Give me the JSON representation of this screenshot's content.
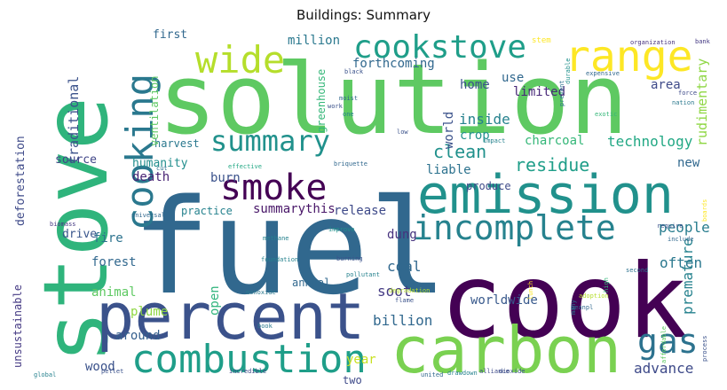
{
  "title": "Buildings: Summary",
  "palette": [
    "#440154",
    "#482878",
    "#3e4a89",
    "#31688e",
    "#26828e",
    "#1f9e89",
    "#35b779",
    "#6ece58",
    "#b5de2b",
    "#fde725"
  ],
  "words": [
    {
      "text": "solution",
      "color": "#5ec962"
    },
    {
      "text": "fuel",
      "color": "#31688e"
    },
    {
      "text": "cook",
      "color": "#440154"
    },
    {
      "text": "stove",
      "color": "#2fb47c"
    },
    {
      "text": "emission",
      "color": "#21918c"
    },
    {
      "text": "percent",
      "color": "#3b528b"
    },
    {
      "text": "carbon",
      "color": "#7ad151"
    },
    {
      "text": "combustion",
      "color": "#1f9e89"
    },
    {
      "text": "incomplete",
      "color": "#26828e"
    },
    {
      "text": "range",
      "color": "#fde725"
    },
    {
      "text": "cookstove",
      "color": "#1f9e89"
    },
    {
      "text": "wide",
      "color": "#b5de2b"
    },
    {
      "text": "cooking",
      "color": "#2a788e"
    },
    {
      "text": "summary",
      "color": "#21918c"
    },
    {
      "text": "smoke",
      "color": "#440154"
    },
    {
      "text": "gas",
      "color": "#2c728e"
    },
    {
      "text": "clean",
      "color": "#21918c"
    },
    {
      "text": "technology",
      "color": "#22a884"
    },
    {
      "text": "charcoal",
      "color": "#35b779"
    },
    {
      "text": "residue",
      "color": "#1f9e89"
    },
    {
      "text": "premature",
      "color": "#26828e"
    },
    {
      "text": "advance",
      "color": "#3e4a89"
    },
    {
      "text": "billion",
      "color": "#31688e"
    },
    {
      "text": "soot",
      "color": "#443a83"
    },
    {
      "text": "people",
      "color": "#287d8e"
    },
    {
      "text": "often",
      "color": "#2a788e"
    },
    {
      "text": "coal",
      "color": "#31688e"
    },
    {
      "text": "dung",
      "color": "#46327e"
    },
    {
      "text": "release",
      "color": "#3e4a89"
    },
    {
      "text": "summarythis",
      "color": "#481668"
    },
    {
      "text": "death",
      "color": "#482475"
    },
    {
      "text": "burn",
      "color": "#3b528b"
    },
    {
      "text": "fire",
      "color": "#2c728e"
    },
    {
      "text": "forest",
      "color": "#31688e"
    },
    {
      "text": "animal",
      "color": "#5ec962"
    },
    {
      "text": "plume",
      "color": "#8fd744"
    },
    {
      "text": "around",
      "color": "#355f8d"
    },
    {
      "text": "wood",
      "color": "#3b528b"
    },
    {
      "text": "open",
      "color": "#2fb47c"
    },
    {
      "text": "year",
      "color": "#c8e020"
    },
    {
      "text": "two",
      "color": "#3e4a89"
    },
    {
      "text": "worldwide",
      "color": "#38598c"
    },
    {
      "text": "annual",
      "color": "#31688e"
    },
    {
      "text": "practice",
      "color": "#26828e"
    },
    {
      "text": "drive",
      "color": "#39568c"
    },
    {
      "text": "harvest",
      "color": "#2a788e"
    },
    {
      "text": "source",
      "color": "#404688"
    },
    {
      "text": "humanity",
      "color": "#218e8d"
    },
    {
      "text": "ventilation",
      "color": "#5ec962"
    },
    {
      "text": "traditional",
      "color": "#3b528b"
    },
    {
      "text": "deforestation",
      "color": "#3e4a89"
    },
    {
      "text": "unsustainable",
      "color": "#443983"
    },
    {
      "text": "million",
      "color": "#2a788e"
    },
    {
      "text": "forthcoming",
      "color": "#31688e"
    },
    {
      "text": "first",
      "color": "#31688e"
    },
    {
      "text": "home",
      "color": "#3b528b"
    },
    {
      "text": "use",
      "color": "#31688e"
    },
    {
      "text": "limited",
      "color": "#482878"
    },
    {
      "text": "area",
      "color": "#3e4a89"
    },
    {
      "text": "inside",
      "color": "#26828e"
    },
    {
      "text": "crop",
      "color": "#21918c"
    },
    {
      "text": "world",
      "color": "#3b528b"
    },
    {
      "text": "liable",
      "color": "#2c728e"
    },
    {
      "text": "produce",
      "color": "#3e4a89"
    },
    {
      "text": "new",
      "color": "#31688e"
    },
    {
      "text": "greenhouse",
      "color": "#35b779"
    },
    {
      "text": "rudimentary",
      "color": "#8fd744"
    },
    {
      "text": "stem",
      "color": "#fde725"
    },
    {
      "text": "organization",
      "color": "#46327e"
    },
    {
      "text": "black",
      "color": "#3b528b"
    },
    {
      "text": "expensive",
      "color": "#31688e"
    },
    {
      "text": "durable",
      "color": "#21918c"
    },
    {
      "text": "bank",
      "color": "#443983"
    },
    {
      "text": "force",
      "color": "#3e4a89"
    },
    {
      "text": "nation",
      "color": "#2a788e"
    },
    {
      "text": "moist",
      "color": "#31688e"
    },
    {
      "text": "work",
      "color": "#3b528b"
    },
    {
      "text": "one",
      "color": "#26828e"
    },
    {
      "text": "prevent",
      "color": "#2c728e"
    },
    {
      "text": "exotic",
      "color": "#35b779"
    },
    {
      "text": "impact",
      "color": "#26828e"
    },
    {
      "text": "low",
      "color": "#3b528b"
    },
    {
      "text": "cut",
      "color": "#2c728e"
    },
    {
      "text": "effective",
      "color": "#22a884"
    },
    {
      "text": "briquette",
      "color": "#31688e"
    },
    {
      "text": "biomass",
      "color": "#443983"
    },
    {
      "text": "universal",
      "color": "#31688e"
    },
    {
      "text": "methane",
      "color": "#26828e"
    },
    {
      "text": "improve",
      "color": "#21918c"
    },
    {
      "text": "require",
      "color": "#3b528b"
    },
    {
      "text": "boards",
      "color": "#fde725"
    },
    {
      "text": "include",
      "color": "#31688e"
    },
    {
      "text": "burning",
      "color": "#3b528b"
    },
    {
      "text": "pollutant",
      "color": "#26828e"
    },
    {
      "text": "second",
      "color": "#2c728e"
    },
    {
      "text": "foundation",
      "color": "#26828e"
    },
    {
      "text": "monoxide",
      "color": "#2a788e"
    },
    {
      "text": "degradation",
      "color": "#b5de2b"
    },
    {
      "text": "flame",
      "color": "#3b528b"
    },
    {
      "text": "many",
      "color": "#2a788e"
    },
    {
      "text": "lunch",
      "color": "#fde725"
    },
    {
      "text": "adoption",
      "color": "#b5de2b"
    },
    {
      "text": "high",
      "color": "#35b779"
    },
    {
      "text": "meanpl",
      "color": "#31688e"
    },
    {
      "text": "affordable",
      "color": "#5ec962"
    },
    {
      "text": "process",
      "color": "#3b528b"
    },
    {
      "text": "book",
      "color": "#2a788e"
    },
    {
      "text": "incredible",
      "color": "#3e4a89"
    },
    {
      "text": "dioxide",
      "color": "#3b528b"
    },
    {
      "text": "drawdown",
      "color": "#26828e"
    },
    {
      "text": "alliance",
      "color": "#3e4a89"
    },
    {
      "text": "united",
      "color": "#31688e"
    },
    {
      "text": "pellet",
      "color": "#3b528b"
    },
    {
      "text": "global",
      "color": "#26828e"
    }
  ]
}
